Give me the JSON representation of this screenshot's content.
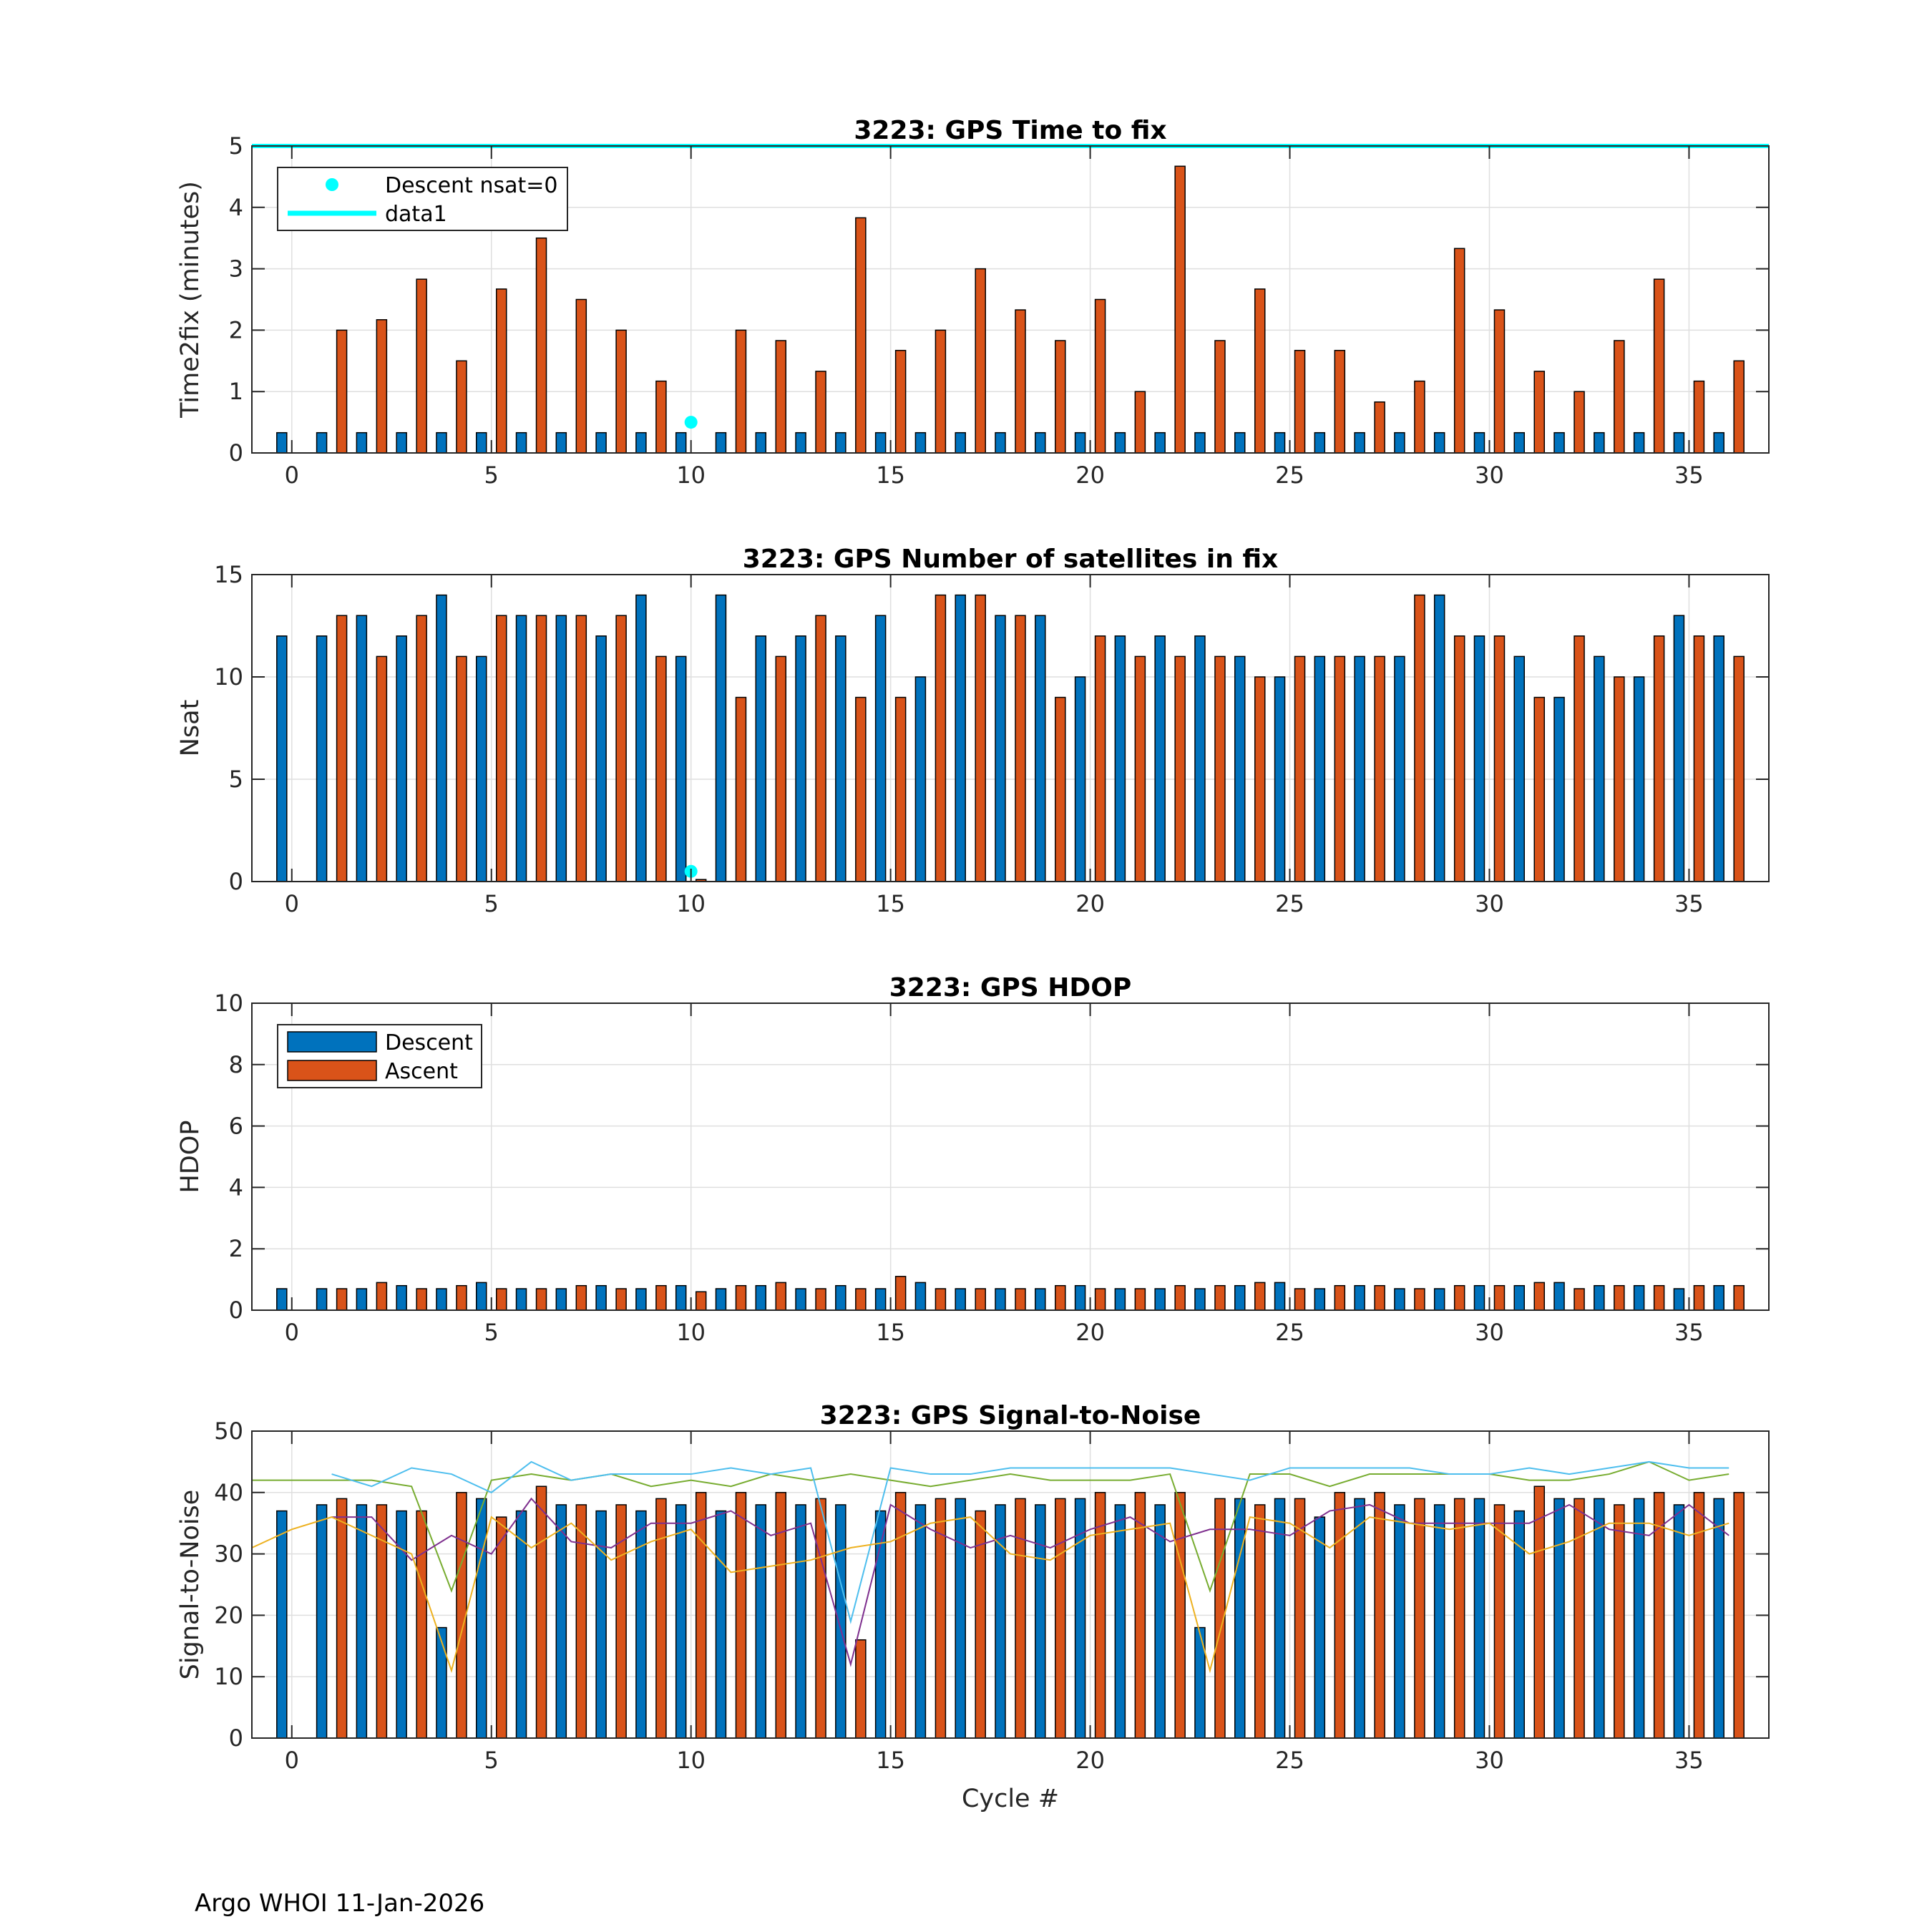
{
  "footer": "Argo WHOI 11-Jan-2026",
  "colors": {
    "descent": "#0072BD",
    "ascent": "#D95319",
    "cyan": "#00FFFF",
    "grid": "#DFDFDF"
  },
  "chart_data": [
    {
      "id": "ttf",
      "type": "bar",
      "title": "3223: GPS Time to fix",
      "xlabel": "",
      "ylabel": "Time2fix (minutes)",
      "xlim": [
        -1,
        37
      ],
      "ylim": [
        0,
        5
      ],
      "xticks": [
        0,
        5,
        10,
        15,
        20,
        25,
        30,
        35
      ],
      "yticks": [
        0,
        1,
        2,
        3,
        4,
        5
      ],
      "grid": true,
      "legend": {
        "position": "top-left",
        "entries": [
          {
            "label": "Descent nsat=0",
            "kind": "marker",
            "color": "#00FFFF"
          },
          {
            "label": "data1",
            "kind": "line",
            "color": "#00FFFF"
          }
        ]
      },
      "cycles": [
        0,
        1,
        2,
        3,
        4,
        5,
        6,
        7,
        8,
        9,
        10,
        11,
        12,
        13,
        14,
        15,
        16,
        17,
        18,
        19,
        20,
        21,
        22,
        23,
        24,
        25,
        26,
        27,
        28,
        29,
        30,
        31,
        32,
        33,
        34,
        35,
        36
      ],
      "series": [
        {
          "name": "Descent",
          "color": "#0072BD",
          "values": [
            0.33,
            0.33,
            0.33,
            0.33,
            0.33,
            0.33,
            0.33,
            0.33,
            0.33,
            0.33,
            0.33,
            0.33,
            0.33,
            0.33,
            0.33,
            0.33,
            0.33,
            0.33,
            0.33,
            0.33,
            0.33,
            0.33,
            0.33,
            0.33,
            0.33,
            0.33,
            0.33,
            0.33,
            0.33,
            0.33,
            0.33,
            0.33,
            0.33,
            0.33,
            0.33,
            0.33,
            0.33
          ]
        },
        {
          "name": "Ascent",
          "color": "#D95319",
          "values": [
            null,
            2.0,
            2.17,
            2.83,
            1.5,
            2.67,
            3.5,
            2.5,
            2.0,
            1.17,
            null,
            2.0,
            1.83,
            1.33,
            3.83,
            1.67,
            2.0,
            3.0,
            2.33,
            1.83,
            2.5,
            1.0,
            4.67,
            1.83,
            2.67,
            1.67,
            1.67,
            0.83,
            1.17,
            3.33,
            2.33,
            1.33,
            1.0,
            1.83,
            2.83,
            1.17,
            1.5
          ]
        }
      ],
      "markers": [
        {
          "x": 10,
          "y": 0.5,
          "color": "#00FFFF"
        }
      ],
      "hlines": [
        {
          "y": 5,
          "color": "#00FFFF"
        }
      ]
    },
    {
      "id": "nsat",
      "type": "bar",
      "title": "3223: GPS Number of satellites in fix",
      "xlabel": "",
      "ylabel": "Nsat",
      "xlim": [
        -1,
        37
      ],
      "ylim": [
        0,
        15
      ],
      "xticks": [
        0,
        5,
        10,
        15,
        20,
        25,
        30,
        35
      ],
      "yticks": [
        0,
        5,
        10,
        15
      ],
      "grid": true,
      "cycles": [
        0,
        1,
        2,
        3,
        4,
        5,
        6,
        7,
        8,
        9,
        10,
        11,
        12,
        13,
        14,
        15,
        16,
        17,
        18,
        19,
        20,
        21,
        22,
        23,
        24,
        25,
        26,
        27,
        28,
        29,
        30,
        31,
        32,
        33,
        34,
        35,
        36
      ],
      "series": [
        {
          "name": "Descent",
          "color": "#0072BD",
          "values": [
            12,
            12,
            13,
            12,
            14,
            11,
            13,
            13,
            12,
            14,
            11,
            14,
            12,
            12,
            12,
            13,
            10,
            14,
            13,
            13,
            10,
            12,
            12,
            12,
            11,
            10,
            11,
            11,
            11,
            14,
            12,
            11,
            9,
            11,
            10,
            13,
            12
          ]
        },
        {
          "name": "Ascent",
          "color": "#D95319",
          "values": [
            null,
            13,
            11,
            13,
            11,
            13,
            13,
            13,
            13,
            11,
            0.1,
            9,
            11,
            13,
            9,
            9,
            14,
            14,
            13,
            9,
            12,
            11,
            11,
            11,
            10,
            11,
            11,
            11,
            14,
            12,
            12,
            9,
            12,
            10,
            12,
            12,
            11
          ]
        }
      ],
      "markers": [
        {
          "x": 10,
          "y": 0.5,
          "color": "#00FFFF"
        }
      ]
    },
    {
      "id": "hdop",
      "type": "bar",
      "title": "3223: GPS HDOP",
      "xlabel": "",
      "ylabel": "HDOP",
      "xlim": [
        -1,
        37
      ],
      "ylim": [
        0,
        10
      ],
      "xticks": [
        0,
        5,
        10,
        15,
        20,
        25,
        30,
        35
      ],
      "yticks": [
        0,
        2,
        4,
        6,
        8,
        10
      ],
      "grid": true,
      "legend": {
        "position": "top-left",
        "entries": [
          {
            "label": "Descent",
            "kind": "bar",
            "color": "#0072BD"
          },
          {
            "label": "Ascent",
            "kind": "bar",
            "color": "#D95319"
          }
        ]
      },
      "cycles": [
        0,
        1,
        2,
        3,
        4,
        5,
        6,
        7,
        8,
        9,
        10,
        11,
        12,
        13,
        14,
        15,
        16,
        17,
        18,
        19,
        20,
        21,
        22,
        23,
        24,
        25,
        26,
        27,
        28,
        29,
        30,
        31,
        32,
        33,
        34,
        35,
        36
      ],
      "series": [
        {
          "name": "Descent",
          "color": "#0072BD",
          "values": [
            0.7,
            0.7,
            0.7,
            0.8,
            0.7,
            0.9,
            0.7,
            0.7,
            0.8,
            0.7,
            0.8,
            0.7,
            0.8,
            0.7,
            0.8,
            0.7,
            0.9,
            0.7,
            0.7,
            0.7,
            0.8,
            0.7,
            0.7,
            0.7,
            0.8,
            0.9,
            0.7,
            0.8,
            0.7,
            0.7,
            0.8,
            0.8,
            0.9,
            0.8,
            0.8,
            0.7,
            0.8
          ]
        },
        {
          "name": "Ascent",
          "color": "#D95319",
          "values": [
            null,
            0.7,
            0.9,
            0.7,
            0.8,
            0.7,
            0.7,
            0.8,
            0.7,
            0.8,
            0.6,
            0.8,
            0.9,
            0.7,
            0.7,
            1.1,
            0.7,
            0.7,
            0.7,
            0.8,
            0.7,
            0.7,
            0.8,
            0.8,
            0.9,
            0.7,
            0.8,
            0.8,
            0.7,
            0.8,
            0.8,
            0.9,
            0.7,
            0.8,
            0.8,
            0.8,
            0.8
          ]
        }
      ]
    },
    {
      "id": "snr",
      "type": "bar",
      "title": "3223: GPS Signal-to-Noise",
      "xlabel": "Cycle #",
      "ylabel": "Signal-to-Noise",
      "xlim": [
        -1,
        37
      ],
      "ylim": [
        0,
        50
      ],
      "xticks": [
        0,
        5,
        10,
        15,
        20,
        25,
        30,
        35
      ],
      "yticks": [
        0,
        10,
        20,
        30,
        40,
        50
      ],
      "grid": true,
      "cycles": [
        0,
        1,
        2,
        3,
        4,
        5,
        6,
        7,
        8,
        9,
        10,
        11,
        12,
        13,
        14,
        15,
        16,
        17,
        18,
        19,
        20,
        21,
        22,
        23,
        24,
        25,
        26,
        27,
        28,
        29,
        30,
        31,
        32,
        33,
        34,
        35,
        36
      ],
      "series": [
        {
          "name": "Descent",
          "color": "#0072BD",
          "values": [
            37,
            38,
            38,
            37,
            18,
            39,
            37,
            38,
            37,
            37,
            38,
            37,
            38,
            38,
            38,
            37,
            38,
            39,
            38,
            38,
            39,
            38,
            38,
            18,
            39,
            39,
            36,
            39,
            38,
            38,
            39,
            37,
            39,
            39,
            39,
            38,
            39
          ]
        },
        {
          "name": "Ascent",
          "color": "#D95319",
          "values": [
            null,
            39,
            38,
            37,
            40,
            36,
            41,
            38,
            38,
            39,
            40,
            40,
            40,
            39,
            16,
            40,
            39,
            37,
            39,
            39,
            40,
            40,
            40,
            39,
            38,
            39,
            40,
            40,
            39,
            39,
            38,
            41,
            39,
            38,
            40,
            40,
            40
          ]
        }
      ],
      "lines": [
        {
          "name": "green",
          "color": "#77AC30",
          "x": [
            -1,
            0,
            1,
            2,
            3,
            4,
            5,
            6,
            7,
            8,
            9,
            10,
            11,
            12,
            13,
            14,
            15,
            16,
            17,
            18,
            19,
            20,
            21,
            22,
            23,
            24,
            25,
            26,
            27,
            28,
            29,
            30,
            31,
            32,
            33,
            34,
            35,
            36
          ],
          "y": [
            42,
            42,
            42,
            42,
            41,
            24,
            42,
            43,
            42,
            43,
            41,
            42,
            41,
            43,
            42,
            43,
            42,
            41,
            42,
            43,
            42,
            42,
            42,
            43,
            24,
            43,
            43,
            41,
            43,
            43,
            43,
            43,
            42,
            42,
            43,
            45,
            42,
            43
          ]
        },
        {
          "name": "cyan",
          "color": "#4DBEEE",
          "x": [
            1,
            2,
            3,
            4,
            5,
            6,
            7,
            8,
            9,
            10,
            11,
            12,
            13,
            14,
            15,
            16,
            17,
            18,
            19,
            20,
            21,
            22,
            23,
            24,
            25,
            26,
            27,
            28,
            29,
            30,
            31,
            32,
            33,
            34,
            35,
            36
          ],
          "y": [
            43,
            41,
            44,
            43,
            40,
            45,
            42,
            43,
            43,
            43,
            44,
            43,
            44,
            19,
            44,
            43,
            43,
            44,
            44,
            44,
            44,
            44,
            43,
            42,
            44,
            44,
            44,
            44,
            43,
            43,
            44,
            43,
            44,
            45,
            44,
            44
          ]
        },
        {
          "name": "purple",
          "color": "#7E2F8E",
          "x": [
            1,
            2,
            3,
            4,
            5,
            6,
            7,
            8,
            9,
            10,
            11,
            12,
            13,
            14,
            15,
            16,
            17,
            18,
            19,
            20,
            21,
            22,
            23,
            24,
            25,
            26,
            27,
            28,
            29,
            30,
            31,
            32,
            33,
            34,
            35,
            36
          ],
          "y": [
            36,
            36,
            29,
            33,
            30,
            39,
            32,
            31,
            35,
            35,
            37,
            33,
            35,
            12,
            38,
            34,
            31,
            33,
            31,
            34,
            36,
            32,
            34,
            34,
            33,
            37,
            38,
            35,
            35,
            35,
            35,
            38,
            34,
            33,
            38,
            33
          ]
        },
        {
          "name": "yellow",
          "color": "#EDB120",
          "x": [
            -1,
            0,
            1,
            2,
            3,
            4,
            5,
            6,
            7,
            8,
            9,
            10,
            11,
            12,
            13,
            14,
            15,
            16,
            17,
            18,
            19,
            20,
            21,
            22,
            23,
            24,
            25,
            26,
            27,
            28,
            29,
            30,
            31,
            32,
            33,
            34,
            35,
            36
          ],
          "y": [
            31,
            34,
            36,
            33,
            30,
            11,
            36,
            31,
            35,
            29,
            32,
            34,
            27,
            28,
            29,
            31,
            32,
            35,
            36,
            30,
            29,
            33,
            34,
            35,
            11,
            36,
            35,
            31,
            36,
            35,
            34,
            35,
            30,
            32,
            35,
            35,
            33,
            35
          ]
        }
      ]
    }
  ]
}
